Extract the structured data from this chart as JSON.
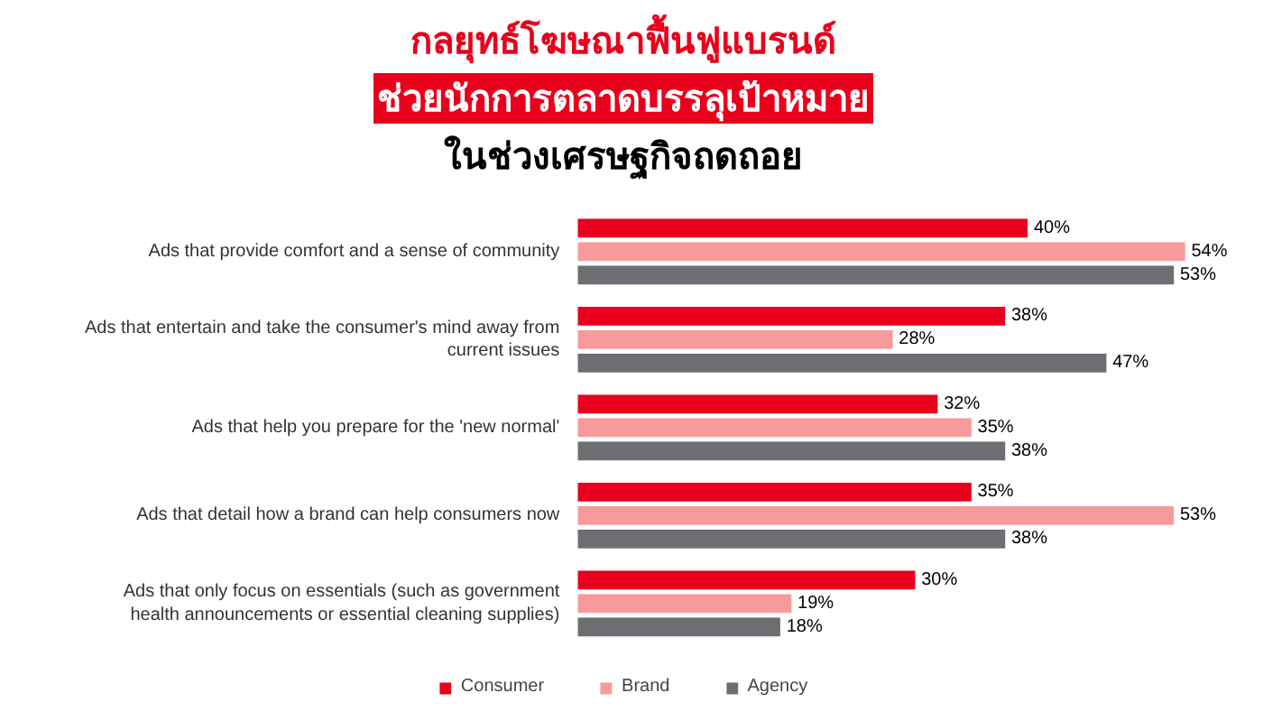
{
  "chart_data": {
    "type": "bar",
    "orientation": "horizontal",
    "title": "กลยุทธ์โฆษณาฟื้นฟูแบรนด์",
    "subtitle": [
      "ช่วยนักการตลาดบรรลุเป้าหมาย",
      "ในช่วงเศรษฐกิจถดถอย"
    ],
    "categories": [
      "Ads that provide comfort and a sense of community",
      "Ads that entertain and take the consumer's mind away from current issues",
      "Ads that help you prepare for the 'new normal'",
      "Ads that detail how a brand can help consumers now",
      "Ads that only focus on essentials (such as government health announcements or essential cleaning supplies)"
    ],
    "series": [
      {
        "name": "Consumer",
        "color": "#e8001c",
        "values": [
          40,
          38,
          32,
          35,
          30
        ],
        "value_labels": [
          "40%",
          "38%",
          "32%",
          "35%",
          "30%"
        ]
      },
      {
        "name": "Brand",
        "color": "#f79a9a",
        "values": [
          54,
          28,
          35,
          53,
          19
        ],
        "value_labels": [
          "54%",
          "28%",
          "35%",
          "53%",
          "19%"
        ]
      },
      {
        "name": "Agency",
        "color": "#6d6e71",
        "values": [
          53,
          47,
          38,
          38,
          18
        ],
        "value_labels": [
          "53%",
          "47%",
          "38%",
          "38%",
          "18%"
        ]
      }
    ],
    "legend": "bottom"
  }
}
